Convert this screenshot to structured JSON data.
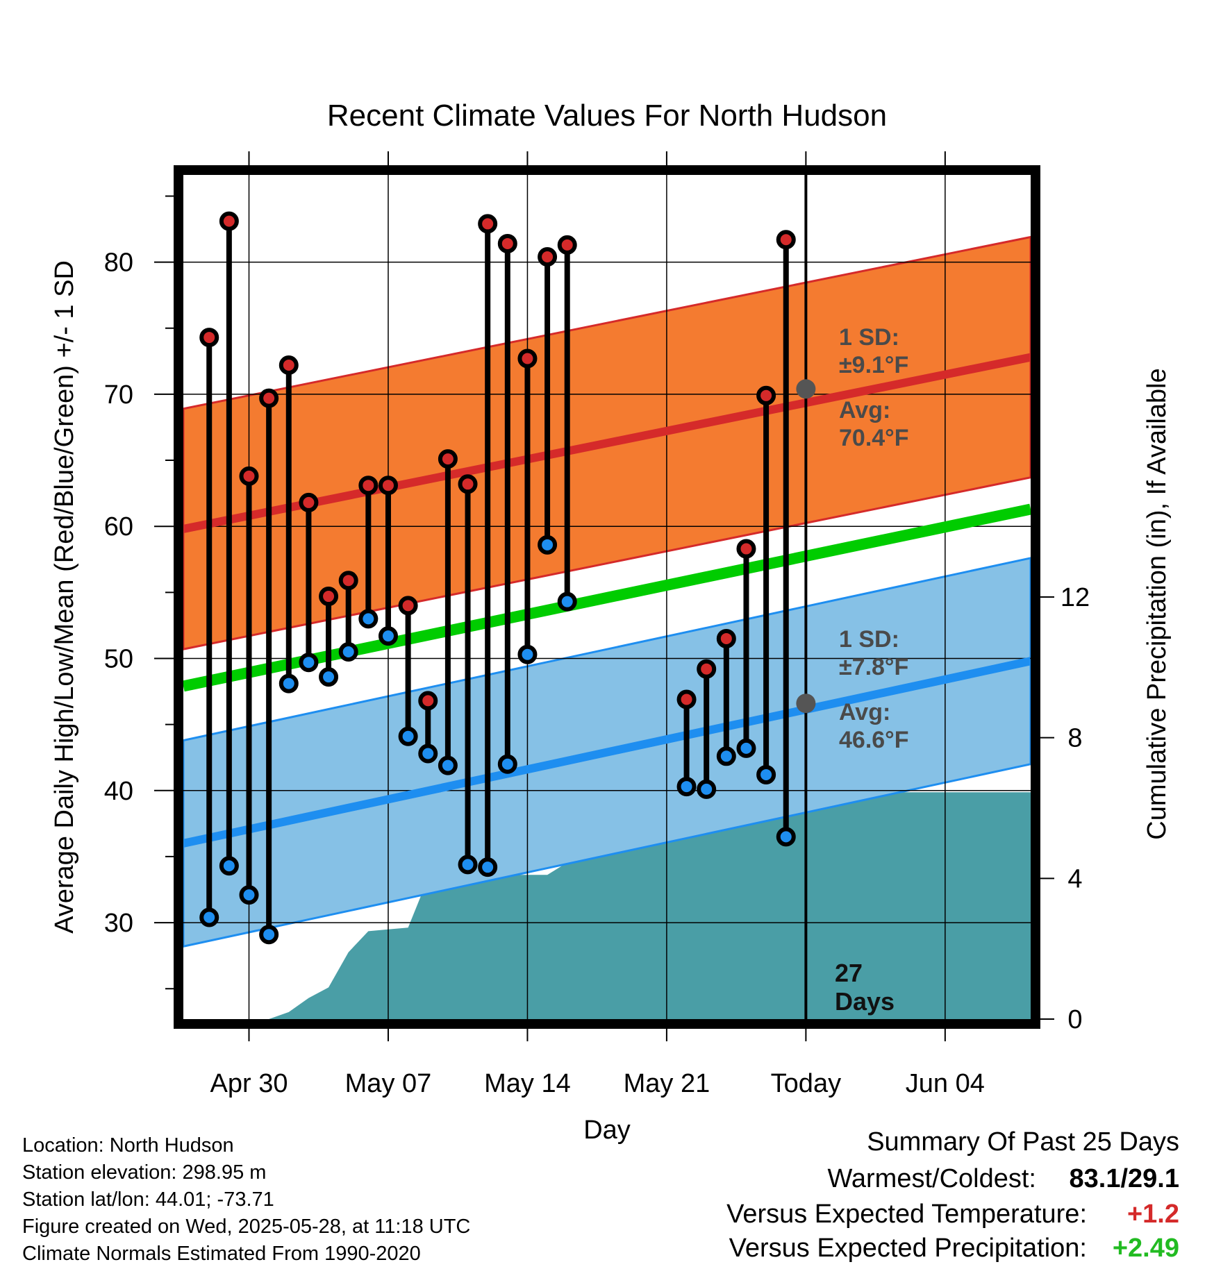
{
  "chart_data": {
    "type": "line",
    "title": "Recent Climate Values For North Hudson",
    "xlabel": "Day",
    "ylabel": "Average Daily High/Low/Mean (Red/Blue/Green) +/- 1 SD",
    "y2label": "Cumulative Precipitation (in), If Available",
    "xlim": [
      -3.3,
      39.3
    ],
    "ylim": [
      22.7,
      86.6
    ],
    "y2lim": [
      0,
      24
    ],
    "x_ticks": [
      {
        "x": 0,
        "label": "Apr 30"
      },
      {
        "x": 7,
        "label": "May 07"
      },
      {
        "x": 14,
        "label": "May 14"
      },
      {
        "x": 21,
        "label": "May 21"
      },
      {
        "x": 28,
        "label": "Today"
      },
      {
        "x": 35,
        "label": "Jun 04"
      }
    ],
    "y_ticks": [
      30,
      40,
      50,
      60,
      70,
      80
    ],
    "y2_ticks": [
      0,
      4,
      8,
      12
    ],
    "grid": true,
    "today_x": 28,
    "today_label": "27",
    "today_label2": "Days",
    "normals": {
      "high_mean_start": 59.8,
      "high_mean_end": 72.8,
      "high_sd": 9.1,
      "low_mean_start": 36.0,
      "low_mean_end": 49.8,
      "low_sd": 7.8,
      "mean_start": 47.9,
      "mean_end": 61.3
    },
    "annotations": {
      "high_sd_label": "1 SD:",
      "high_sd_value": "±9.1°F",
      "high_avg_label": "Avg:",
      "high_avg_value": "70.4°F",
      "low_sd_label": "1 SD:",
      "low_sd_value": "±7.8°F",
      "low_avg_label": "Avg:",
      "low_avg_value": "46.6°F",
      "high_avg": 70.4,
      "low_avg": 46.6
    },
    "daily": [
      {
        "x": -2,
        "high": 74.3,
        "low": 30.4
      },
      {
        "x": -1,
        "high": 83.1,
        "low": 34.3
      },
      {
        "x": 0,
        "high": 63.8,
        "low": 32.1
      },
      {
        "x": 1,
        "high": 69.7,
        "low": 29.1
      },
      {
        "x": 2,
        "high": 72.2,
        "low": 48.1
      },
      {
        "x": 3,
        "high": 61.8,
        "low": 49.7
      },
      {
        "x": 4,
        "high": 54.7,
        "low": 48.6
      },
      {
        "x": 5,
        "high": 55.9,
        "low": 50.5
      },
      {
        "x": 6,
        "high": 63.1,
        "low": 53.0
      },
      {
        "x": 7,
        "high": 63.1,
        "low": 51.7
      },
      {
        "x": 8,
        "high": 54.0,
        "low": 44.1
      },
      {
        "x": 9,
        "high": 46.8,
        "low": 42.8
      },
      {
        "x": 10,
        "high": 65.1,
        "low": 41.9
      },
      {
        "x": 11,
        "high": 63.2,
        "low": 34.4
      },
      {
        "x": 12,
        "high": 82.9,
        "low": 34.2
      },
      {
        "x": 13,
        "high": 81.4,
        "low": 42.0
      },
      {
        "x": 14,
        "high": 72.7,
        "low": 50.3
      },
      {
        "x": 15,
        "high": 80.4,
        "low": 58.6
      },
      {
        "x": 16,
        "high": 81.3,
        "low": 54.3
      },
      {
        "x": 22,
        "high": 46.9,
        "low": 40.3
      },
      {
        "x": 23,
        "high": 49.2,
        "low": 40.1
      },
      {
        "x": 24,
        "high": 51.5,
        "low": 42.6
      },
      {
        "x": 25,
        "high": 58.3,
        "low": 43.2
      },
      {
        "x": 26,
        "high": 69.9,
        "low": 41.2
      },
      {
        "x": 27,
        "high": 81.7,
        "low": 36.5
      }
    ],
    "precip": {
      "x": [
        -3.3,
        1,
        2,
        3,
        4,
        5,
        6,
        7,
        8,
        9,
        10,
        11,
        12,
        13,
        14,
        15,
        16,
        17,
        18,
        19,
        20,
        21,
        22,
        23,
        24,
        25,
        26,
        39.3
      ],
      "y": [
        0,
        0,
        0.2,
        0.6,
        0.9,
        1.9,
        2.5,
        2.55,
        2.6,
        4.0,
        4.1,
        4.1,
        4.1,
        4.1,
        4.1,
        4.1,
        4.45,
        5.6,
        5.6,
        5.6,
        5.6,
        5.7,
        5.9,
        6.25,
        6.45,
        6.45,
        6.45,
        6.45
      ]
    }
  },
  "footer": {
    "location": "Location: North Hudson",
    "elevation": "Station elevation: 298.95 m",
    "latlon": "Station lat/lon: 44.01; -73.71",
    "created": "Figure created on Wed, 2025-05-28, at 11:18 UTC",
    "normals": "Climate Normals Estimated From 1990-2020"
  },
  "summary": {
    "heading": "Summary Of Past 25 Days",
    "warmest_label": "Warmest/Coldest:",
    "warmest_value": "83.1/29.1",
    "temp_label": "Versus Expected Temperature:",
    "temp_value": "+1.2",
    "precip_label": "Versus Expected Precipitation:",
    "precip_value": "+2.49"
  },
  "colors": {
    "high_band": "#f47b30",
    "high_line": "#d52a2a",
    "low_band": "#86c1e6",
    "low_line": "#1e8ef0",
    "mean_line": "#00cc00",
    "precip": "#4a9ea6",
    "high_dot": "#d42a2a",
    "low_dot": "#1e8ef0",
    "temp_delta": "#d42a2a",
    "precip_delta": "#22bb22",
    "marker": "#555555"
  }
}
